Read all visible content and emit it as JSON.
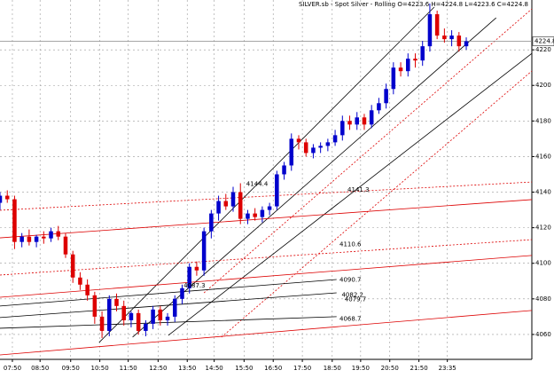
{
  "chart_data": {
    "type": "candlestick",
    "title": "SILVER.sb - Spot Silver - Rolling O=4223.6 H=4224.8 L=4223.6 C=4224.8",
    "up_color": "#0000cc",
    "down_color": "#dd0000",
    "xlim": [
      0,
      73
    ],
    "ylim": [
      4046,
      4248
    ],
    "yticks": [
      4060,
      4080,
      4100,
      4120,
      4140,
      4160,
      4180,
      4200,
      4220
    ],
    "xticks": [
      {
        "value": 1.7,
        "label": "07:50"
      },
      {
        "value": 5.5,
        "label": "08:50"
      },
      {
        "value": 9.7,
        "label": "09:50"
      },
      {
        "value": 13.7,
        "label": "10:50"
      },
      {
        "value": 17.6,
        "label": "11:50"
      },
      {
        "value": 21.7,
        "label": "12:50"
      },
      {
        "value": 25.7,
        "label": "13:50"
      },
      {
        "value": 29.4,
        "label": "14:50"
      },
      {
        "value": 33.5,
        "label": "15:50"
      },
      {
        "value": 37.5,
        "label": "16:50"
      },
      {
        "value": 41.5,
        "label": "17:50"
      },
      {
        "value": 45.6,
        "label": "18:50"
      },
      {
        "value": 49.5,
        "label": "19:50"
      },
      {
        "value": 53.5,
        "label": "20:50"
      },
      {
        "value": 57.5,
        "label": "21:50"
      },
      {
        "value": 61.4,
        "label": "23:35"
      }
    ],
    "grid": true,
    "open": [
      4134,
      4138,
      4136,
      4112,
      4115,
      4112,
      4115,
      4114,
      4118,
      4115,
      4105,
      4092,
      4088,
      4082,
      4070,
      4062,
      4080,
      4076,
      4068,
      4072,
      4062,
      4066,
      4074,
      4068,
      4070,
      4080,
      4086,
      4098,
      4096,
      4118,
      4128,
      4135,
      4132,
      4140,
      4125,
      4128,
      4126,
      4130,
      4132,
      4150,
      4155,
      4170,
      4168,
      4162,
      4165,
      4166,
      4168,
      4172,
      4180,
      4178,
      4182,
      4178,
      4186,
      4190,
      4198,
      4210,
      4208,
      4215,
      4214,
      4222,
      4240,
      4228,
      4226,
      4228,
      4222
    ],
    "high": [
      4140,
      4141,
      4138,
      4117,
      4119,
      4116,
      4118,
      4120,
      4121,
      4117,
      4107,
      4095,
      4091,
      4084,
      4073,
      4082,
      4083,
      4079,
      4073,
      4074,
      4068,
      4076,
      4076,
      4072,
      4082,
      4088,
      4100,
      4101,
      4120,
      4130,
      4138,
      4139,
      4143,
      4145,
      4130,
      4131,
      4132,
      4134,
      4152,
      4157,
      4173,
      4172,
      4170,
      4167,
      4168,
      4170,
      4175,
      4183,
      4183,
      4185,
      4184,
      4189,
      4193,
      4201,
      4213,
      4213,
      4218,
      4218,
      4225,
      4246,
      4242,
      4232,
      4231,
      4230,
      4227
    ],
    "low": [
      4130,
      4134,
      4108,
      4109,
      4110,
      4109,
      4111,
      4112,
      4113,
      4103,
      4089,
      4085,
      4079,
      4066,
      4058,
      4059,
      4073,
      4065,
      4064,
      4060,
      4059,
      4063,
      4065,
      4065,
      4067,
      4077,
      4083,
      4093,
      4093,
      4114,
      4124,
      4130,
      4129,
      4122,
      4122,
      4124,
      4123,
      4127,
      4130,
      4147,
      4152,
      4164,
      4160,
      4159,
      4162,
      4163,
      4166,
      4169,
      4175,
      4175,
      4175,
      4176,
      4184,
      4187,
      4195,
      4205,
      4205,
      4210,
      4211,
      4219,
      4226,
      4224,
      4222,
      4219,
      4220
    ],
    "close": [
      4138,
      4136,
      4112,
      4115,
      4112,
      4115,
      4114,
      4118,
      4115,
      4105,
      4092,
      4088,
      4082,
      4070,
      4062,
      4080,
      4076,
      4068,
      4072,
      4062,
      4066,
      4074,
      4068,
      4070,
      4080,
      4086,
      4098,
      4096,
      4118,
      4128,
      4135,
      4132,
      4140,
      4125,
      4128,
      4126,
      4130,
      4132,
      4150,
      4155,
      4170,
      4168,
      4162,
      4165,
      4166,
      4168,
      4172,
      4180,
      4178,
      4182,
      4178,
      4186,
      4190,
      4198,
      4210,
      4208,
      4215,
      4214,
      4222,
      4240,
      4228,
      4226,
      4228,
      4222,
      4224.8
    ],
    "lines": [
      {
        "x": [
          13.6,
          59.6
        ],
        "y": [
          4055.5,
          4244.0
        ],
        "color": "#000000",
        "dashed": false
      },
      {
        "x": [
          18.2,
          68.1
        ],
        "y": [
          4058.5,
          4238.0
        ],
        "color": "#000000",
        "dashed": false
      },
      {
        "x": [
          23.1,
          73
        ],
        "y": [
          4059.5,
          4218.0
        ],
        "color": "#000000",
        "dashed": false
      },
      {
        "x": [
          28,
          73
        ],
        "y": [
          4083.4,
          4243.0
        ],
        "color": "#dd0000",
        "dashed": true
      },
      {
        "x": [
          30.4,
          73
        ],
        "y": [
          4058.5,
          4208.1
        ],
        "color": "#dd0000",
        "dashed": true
      },
      {
        "x": [
          0,
          73
        ],
        "y": [
          4114.3,
          4135.8
        ],
        "color": "#dd0000",
        "dashed": false
      },
      {
        "x": [
          0,
          73
        ],
        "y": [
          4080.9,
          4104.4
        ],
        "color": "#dd0000",
        "dashed": false
      },
      {
        "x": [
          0,
          73
        ],
        "y": [
          4048.5,
          4073.5
        ],
        "color": "#dd0000",
        "dashed": false
      },
      {
        "x": [
          0,
          73
        ],
        "y": [
          4129.8,
          4145.7
        ],
        "color": "#dd0000",
        "dashed": true
      },
      {
        "x": [
          0,
          73
        ],
        "y": [
          4093.4,
          4113.3
        ],
        "color": "#dd0000",
        "dashed": true
      },
      {
        "x": [
          0,
          46.2
        ],
        "y": [
          4076.0,
          4090.9
        ],
        "color": "#000000",
        "dashed": false
      },
      {
        "x": [
          0,
          46.2
        ],
        "y": [
          4069.5,
          4083.4
        ],
        "color": "#000000",
        "dashed": false
      },
      {
        "x": [
          0,
          46.2
        ],
        "y": [
          4063.5,
          4070.0
        ],
        "color": "#000000",
        "dashed": false
      }
    ],
    "annotations": [
      {
        "text": "4144.4",
        "x": 33.8,
        "y": 4144.4,
        "color": "#dd0000"
      },
      {
        "text": "4141.3",
        "x": 47.7,
        "y": 4141.3,
        "color": "#dd0000"
      },
      {
        "text": "4110.6",
        "x": 46.6,
        "y": 4110.6,
        "color": "#dd0000"
      },
      {
        "text": "4090.7",
        "x": 46.6,
        "y": 4090.7,
        "color": "#000000"
      },
      {
        "text": "4082.2",
        "x": 46.9,
        "y": 4082.2,
        "color": "#000000"
      },
      {
        "text": "4079.7",
        "x": 47.3,
        "y": 4079.7,
        "color": "#dd0000"
      },
      {
        "text": "4087.3",
        "x": 25.2,
        "y": 4087.3,
        "color": "#dd0000"
      },
      {
        "text": "4068.7",
        "x": 46.6,
        "y": 4068.7,
        "color": "#000000"
      }
    ]
  }
}
